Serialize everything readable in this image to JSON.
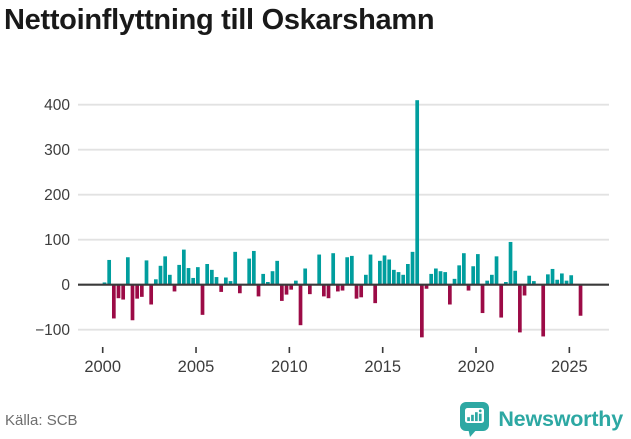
{
  "title": "Nettoinflyttning till Oskarshamn",
  "source": "Källa: SCB",
  "brand": {
    "name": "Newsworthy",
    "color": "#2da8a3",
    "icon": "bar-chart-speech-bubble"
  },
  "colors": {
    "positive": "#009e9e",
    "negative": "#9c0b46",
    "axis": "#3a3a3a",
    "grid": "#e2e2e2",
    "tick_label": "#3d3d3d",
    "title_text": "#191919",
    "source_text": "#6e6e6e"
  },
  "chart_data": {
    "type": "bar",
    "title": "Nettoinflyttning till Oskarshamn",
    "ylabel": "",
    "xlabel": "",
    "frequency": "quarterly",
    "x_start": "2000-Q1",
    "x_end": "2025-Q3",
    "x_tick_labels": [
      "2000",
      "2005",
      "2010",
      "2015",
      "2020",
      "2025"
    ],
    "y_ticks": [
      400,
      300,
      200,
      100,
      0,
      -100
    ],
    "ylim": [
      -125,
      435
    ],
    "grid": true,
    "legend": "none",
    "positive_color": "#009e9e",
    "negative_color": "#9c0b46",
    "values": [
      5,
      55,
      -75,
      -30,
      -33,
      61,
      -79,
      -31,
      -27,
      54,
      -44,
      12,
      42,
      63,
      22,
      -15,
      44,
      78,
      37,
      15,
      39,
      -67,
      46,
      33,
      17,
      -16,
      16,
      8,
      73,
      -19,
      0,
      58,
      75,
      -26,
      24,
      6,
      30,
      53,
      -36,
      -22,
      -11,
      9,
      -90,
      36,
      -21,
      0,
      67,
      -26,
      -30,
      70,
      -15,
      -13,
      61,
      64,
      -31,
      -28,
      22,
      67,
      -41,
      53,
      65,
      56,
      33,
      28,
      22,
      46,
      73,
      410,
      -117,
      -9,
      24,
      36,
      30,
      28,
      -44,
      13,
      43,
      70,
      -13,
      41,
      68,
      -63,
      9,
      22,
      63,
      -73,
      6,
      95,
      31,
      -106,
      -24,
      20,
      8,
      0,
      -115,
      23,
      35,
      11,
      25,
      9,
      21,
      0,
      -69
    ]
  }
}
